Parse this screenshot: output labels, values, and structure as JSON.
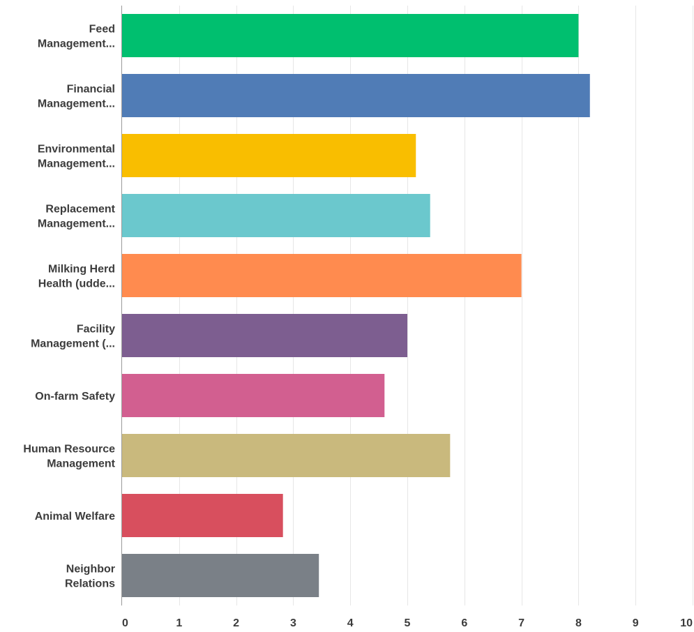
{
  "chart_data": {
    "type": "bar",
    "orientation": "horizontal",
    "categories": [
      [
        "Feed",
        "Management..."
      ],
      [
        "Financial",
        "Management..."
      ],
      [
        "Environmental",
        "Management..."
      ],
      [
        "Replacement",
        "Management..."
      ],
      [
        "Milking Herd",
        "Health (udde..."
      ],
      [
        "Facility",
        "Management (..."
      ],
      [
        "On-farm Safety"
      ],
      [
        "Human Resource",
        "Management"
      ],
      [
        "Animal Welfare"
      ],
      [
        "Neighbor",
        "Relations"
      ]
    ],
    "values": [
      8.0,
      8.2,
      5.15,
      5.4,
      7.0,
      5.0,
      4.6,
      5.75,
      2.82,
      3.45
    ],
    "colors": [
      "#00bf6f",
      "#507cb6",
      "#f9be00",
      "#6bc8cd",
      "#ff8b4f",
      "#7d5e90",
      "#d25f90",
      "#c9b97d",
      "#d84f5e",
      "#7a8087"
    ],
    "xlim": [
      0,
      10
    ],
    "xticks": [
      "0",
      "1",
      "2",
      "3",
      "4",
      "5",
      "6",
      "7",
      "8",
      "9",
      "10"
    ],
    "grid": true,
    "title": "",
    "xlabel": "",
    "ylabel": ""
  }
}
